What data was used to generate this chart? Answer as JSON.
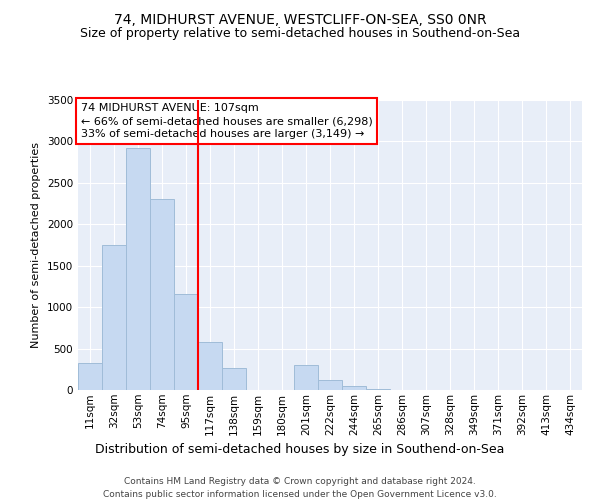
{
  "title": "74, MIDHURST AVENUE, WESTCLIFF-ON-SEA, SS0 0NR",
  "subtitle": "Size of property relative to semi-detached houses in Southend-on-Sea",
  "xlabel": "Distribution of semi-detached houses by size in Southend-on-Sea",
  "ylabel": "Number of semi-detached properties",
  "footer_line1": "Contains HM Land Registry data © Crown copyright and database right 2024.",
  "footer_line2": "Contains public sector information licensed under the Open Government Licence v3.0.",
  "annotation_line1": "74 MIDHURST AVENUE: 107sqm",
  "annotation_line2": "← 66% of semi-detached houses are smaller (6,298)",
  "annotation_line3": "33% of semi-detached houses are larger (3,149) →",
  "bar_labels": [
    "11sqm",
    "32sqm",
    "53sqm",
    "74sqm",
    "95sqm",
    "117sqm",
    "138sqm",
    "159sqm",
    "180sqm",
    "201sqm",
    "222sqm",
    "244sqm",
    "265sqm",
    "286sqm",
    "307sqm",
    "328sqm",
    "349sqm",
    "371sqm",
    "392sqm",
    "413sqm",
    "434sqm"
  ],
  "bar_values": [
    320,
    1750,
    2920,
    2300,
    1160,
    580,
    270,
    0,
    0,
    300,
    120,
    50,
    10,
    0,
    0,
    0,
    0,
    0,
    0,
    0,
    0
  ],
  "bar_color": "#c6d9f1",
  "bar_edge_color": "#a0bcd8",
  "vline_color": "red",
  "vline_pos": 4.5,
  "ylim": [
    0,
    3500
  ],
  "yticks": [
    0,
    500,
    1000,
    1500,
    2000,
    2500,
    3000,
    3500
  ],
  "bg_color": "#e8eef8",
  "grid_color": "#ffffff",
  "title_fontsize": 10,
  "subtitle_fontsize": 9,
  "ylabel_fontsize": 8,
  "xlabel_fontsize": 9,
  "tick_fontsize": 7.5,
  "footer_fontsize": 6.5,
  "annotation_fontsize": 8
}
